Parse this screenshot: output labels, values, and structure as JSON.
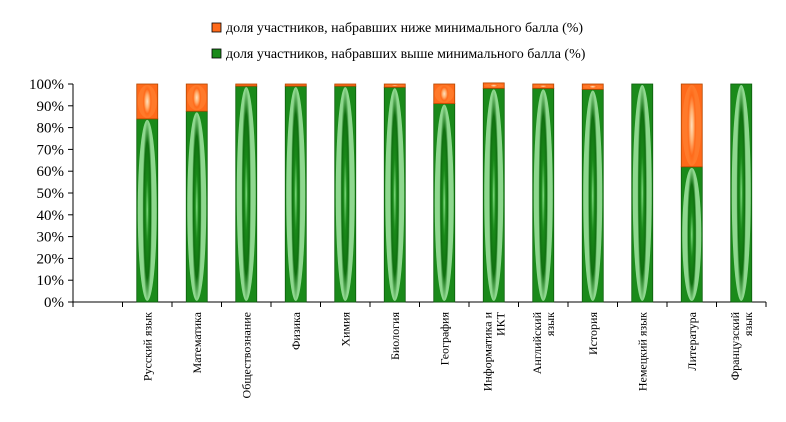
{
  "chart_data": {
    "type": "bar",
    "stacked": true,
    "categories": [
      "",
      "Русский язык",
      "Математика",
      "Обществознание",
      "Физика",
      "Химия",
      "Биология",
      "География",
      "Информатика и ИКТ",
      "Английский язык",
      "История",
      "Немецкий язык",
      "Литература",
      "Французский язык"
    ],
    "series": [
      {
        "name": "доля участников, набравших выше минимального балла (%)",
        "color": "#1a8a1a",
        "values": [
          null,
          84,
          87.5,
          99,
          99,
          99,
          98.5,
          91,
          98,
          98,
          97.5,
          100,
          62,
          100
        ]
      },
      {
        "name": "доля участников, набравших ниже минимального балла (%)",
        "color": "#ff6a1a",
        "values": [
          null,
          16,
          12.5,
          1,
          1,
          1,
          1.5,
          9,
          2.5,
          2,
          2.5,
          0,
          38,
          0
        ]
      }
    ],
    "legend_order": [
      1,
      0
    ],
    "yticks": [
      "0%",
      "10%",
      "20%",
      "30%",
      "40%",
      "50%",
      "60%",
      "70%",
      "80%",
      "90%",
      "100%"
    ],
    "ylim": [
      0,
      100
    ],
    "legend_position": "top",
    "grid": false
  }
}
